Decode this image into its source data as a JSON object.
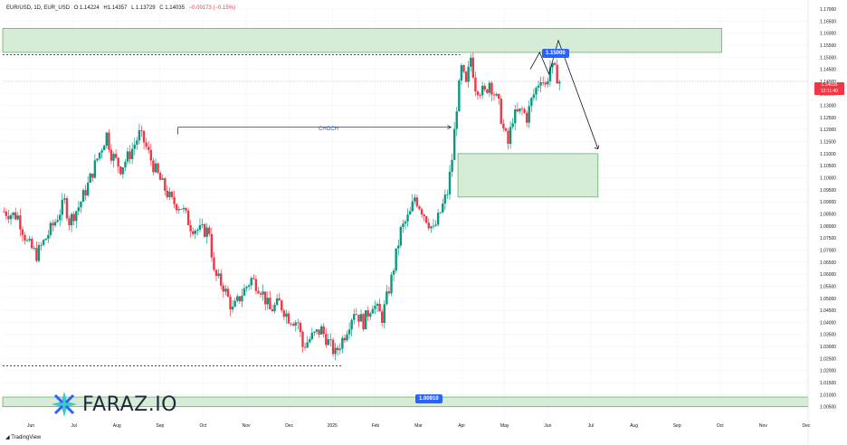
{
  "header": {
    "symbol": "EUR/USD, 1D, EUR_USD",
    "open": "O 1.14224",
    "high": "H1.14357",
    "low": "L 1.13729",
    "close": "C 1.14035",
    "change": "−0.00173 (−0.15%)"
  },
  "last_price": {
    "value": "1.14035",
    "countdown": "12:11:40"
  },
  "annotations": {
    "choch": "CHOCH",
    "target_top": "1.15000",
    "target_bottom": "1.00910"
  },
  "brand": {
    "name": "FARAZ.IO"
  },
  "footer": {
    "tradingview": "TradingView"
  },
  "colors": {
    "up": "#089981",
    "down": "#f23645",
    "zone_fill": "#c8e6c9",
    "zone_border": "#4caf50",
    "callout": "#2962ff",
    "grid": "#f0f3fa"
  },
  "chart_data": {
    "type": "candlestick",
    "ylim": [
      1.0,
      1.17
    ],
    "y_ticks": [
      "1.17000",
      "1.16500",
      "1.16000",
      "1.15500",
      "1.15000",
      "1.14500",
      "1.14000",
      "1.13500",
      "1.13000",
      "1.12500",
      "1.12000",
      "1.11500",
      "1.11000",
      "1.10500",
      "1.10000",
      "1.09500",
      "1.09000",
      "1.08500",
      "1.08000",
      "1.07500",
      "1.07000",
      "1.06500",
      "1.06000",
      "1.05500",
      "1.05000",
      "1.04500",
      "1.04000",
      "1.03500",
      "1.03000",
      "1.02500",
      "1.02000",
      "1.01500",
      "1.01000",
      "1.00500"
    ],
    "x_ticks": [
      "Jun",
      "Jul",
      "Aug",
      "Sep",
      "Oct",
      "Nov",
      "Dec",
      "2025",
      "Feb",
      "Mar",
      "Apr",
      "May",
      "Jun",
      "Jul",
      "Aug",
      "Sep",
      "Oct",
      "Nov",
      "Dec"
    ],
    "path": [
      [
        0,
        1.086
      ],
      [
        6,
        1.084
      ],
      [
        10,
        1.073
      ],
      [
        14,
        1.068
      ],
      [
        18,
        1.075
      ],
      [
        22,
        1.082
      ],
      [
        26,
        1.09
      ],
      [
        28,
        1.082
      ],
      [
        32,
        1.088
      ],
      [
        36,
        1.097
      ],
      [
        40,
        1.108
      ],
      [
        44,
        1.118
      ],
      [
        46,
        1.11
      ],
      [
        50,
        1.104
      ],
      [
        54,
        1.11
      ],
      [
        58,
        1.118
      ],
      [
        60,
        1.115
      ],
      [
        64,
        1.105
      ],
      [
        68,
        1.097
      ],
      [
        72,
        1.09
      ],
      [
        76,
        1.088
      ],
      [
        80,
        1.08
      ],
      [
        84,
        1.078
      ],
      [
        88,
        1.078
      ],
      [
        90,
        1.06
      ],
      [
        94,
        1.055
      ],
      [
        98,
        1.045
      ],
      [
        102,
        1.052
      ],
      [
        106,
        1.058
      ],
      [
        110,
        1.054
      ],
      [
        114,
        1.045
      ],
      [
        118,
        1.048
      ],
      [
        122,
        1.042
      ],
      [
        126,
        1.04
      ],
      [
        128,
        1.03
      ],
      [
        132,
        1.034
      ],
      [
        136,
        1.037
      ],
      [
        140,
        1.03
      ],
      [
        142,
        1.027
      ],
      [
        146,
        1.035
      ],
      [
        150,
        1.045
      ],
      [
        154,
        1.04
      ],
      [
        158,
        1.048
      ],
      [
        162,
        1.042
      ],
      [
        166,
        1.058
      ],
      [
        170,
        1.078
      ],
      [
        174,
        1.085
      ],
      [
        176,
        1.092
      ],
      [
        180,
        1.085
      ],
      [
        184,
        1.078
      ],
      [
        186,
        1.083
      ],
      [
        190,
        1.094
      ],
      [
        192,
        1.108
      ],
      [
        194,
        1.13
      ],
      [
        196,
        1.145
      ],
      [
        198,
        1.138
      ],
      [
        200,
        1.15
      ],
      [
        202,
        1.138
      ],
      [
        206,
        1.135
      ],
      [
        208,
        1.14
      ],
      [
        212,
        1.13
      ],
      [
        214,
        1.12
      ],
      [
        216,
        1.114
      ],
      [
        218,
        1.125
      ],
      [
        222,
        1.128
      ],
      [
        224,
        1.125
      ],
      [
        226,
        1.132
      ],
      [
        230,
        1.142
      ],
      [
        232,
        1.138
      ],
      [
        234,
        1.146
      ],
      [
        236,
        1.144
      ],
      [
        238,
        1.14
      ]
    ],
    "zones": [
      {
        "name": "supply",
        "x": [
          0,
          308
        ],
        "y": [
          1.152,
          1.162
        ]
      },
      {
        "name": "demand",
        "x": [
          195,
          255
        ],
        "y": [
          1.092,
          1.11
        ]
      },
      {
        "name": "low-band",
        "x": [
          0,
          345
        ],
        "y": [
          1.005,
          1.009
        ]
      }
    ],
    "levels": [
      {
        "name": "high-line",
        "y": 1.151,
        "x": [
          0,
          196
        ],
        "style": "dashed"
      },
      {
        "name": "low-line",
        "y": 1.022,
        "x": [
          0,
          145
        ],
        "style": "dashed"
      },
      {
        "name": "choch-line",
        "y": 1.121,
        "x": [
          75,
          192
        ],
        "label": "CHOCH"
      },
      {
        "name": "last-price",
        "y": 1.14,
        "x": [
          0,
          345
        ],
        "style": "dotted"
      }
    ],
    "projection": [
      [
        226,
        1.145
      ],
      [
        230,
        1.152
      ],
      [
        234,
        1.143
      ],
      [
        238,
        1.157
      ],
      [
        255,
        1.112
      ]
    ]
  }
}
